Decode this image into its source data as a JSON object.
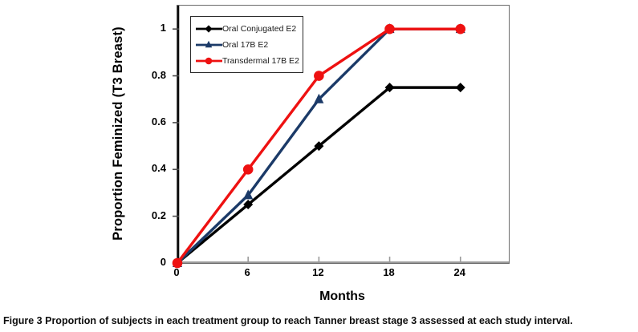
{
  "chart_data": {
    "type": "line",
    "title": "",
    "xlabel": "Months",
    "ylabel": "Proportion Feminized (T3 Breast)",
    "x": [
      0,
      6,
      12,
      18,
      24
    ],
    "xlim": [
      0,
      28.1
    ],
    "ylim": [
      0,
      1.1
    ],
    "grid": false,
    "legend_position": "top-left",
    "xticks": [
      {
        "v": 0,
        "label": "0"
      },
      {
        "v": 6,
        "label": "6"
      },
      {
        "v": 12,
        "label": "12"
      },
      {
        "v": 18,
        "label": "18"
      },
      {
        "v": 24,
        "label": "24"
      }
    ],
    "yticks": [
      {
        "v": 0,
        "label": "0"
      },
      {
        "v": 0.2,
        "label": "0.2"
      },
      {
        "v": 0.4,
        "label": "0.4"
      },
      {
        "v": 0.6,
        "label": "0.6"
      },
      {
        "v": 0.8,
        "label": "0.8"
      },
      {
        "v": 1,
        "label": "1"
      }
    ],
    "series": [
      {
        "name": "Oral Conjugated E2",
        "color": "#000000",
        "marker": "diamond",
        "values": [
          0,
          0.25,
          0.5,
          0.75,
          0.75
        ]
      },
      {
        "name": "Oral 17B E2",
        "color": "#1B3A68",
        "marker": "triangle",
        "values": [
          0,
          0.29,
          0.7,
          1,
          1
        ]
      },
      {
        "name": "Transdermal 17B E2",
        "color": "#EE1111",
        "marker": "circle",
        "values": [
          0,
          0.4,
          0.8,
          1,
          1
        ]
      }
    ]
  },
  "caption": {
    "label": "Figure 3",
    "text": "Proportion of subjects in each treatment group to reach Tanner breast stage 3 assessed at each study interval."
  }
}
